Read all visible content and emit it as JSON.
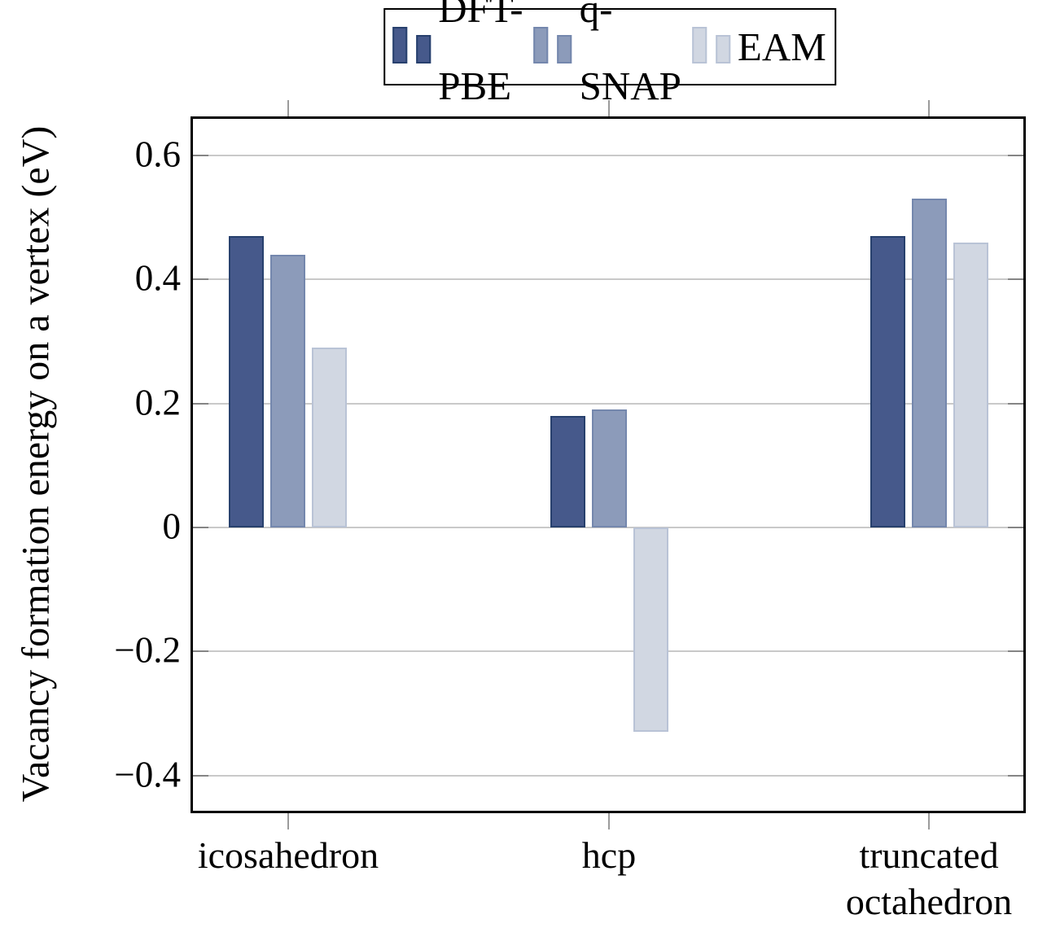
{
  "chart_data": {
    "type": "bar",
    "title": "",
    "xlabel": "",
    "ylabel": "Vacancy formation energy on a vertex (eV)",
    "categories": [
      "icosahedron",
      "hcp",
      "truncated\noctahedron"
    ],
    "series": [
      {
        "name": "DFT-PBE",
        "values": [
          0.47,
          0.18,
          0.47
        ],
        "fill": "#46598b",
        "stroke": "#27406d"
      },
      {
        "name": "q-SNAP",
        "values": [
          0.44,
          0.19,
          0.53
        ],
        "fill": "#8c9bba",
        "stroke": "#7487ad"
      },
      {
        "name": "EAM",
        "values": [
          0.29,
          -0.33,
          0.46
        ],
        "fill": "#d1d7e2",
        "stroke": "#b9c3d6"
      }
    ],
    "yticks": {
      "values": [
        0.6,
        0.4,
        0.2,
        0,
        -0.2,
        -0.4
      ],
      "labels": [
        "0.6",
        "0.4",
        "0.2",
        "0",
        "−0.2",
        "−0.4"
      ]
    },
    "ylim": [
      -0.457,
      0.659
    ],
    "grid": "horizontal",
    "legend_position": "top-center",
    "colors": {
      "grid": "#c9c9c9",
      "axis_border": "#000000",
      "tick_inside": "#858585",
      "tick_outside": "#9b9b9b"
    }
  }
}
